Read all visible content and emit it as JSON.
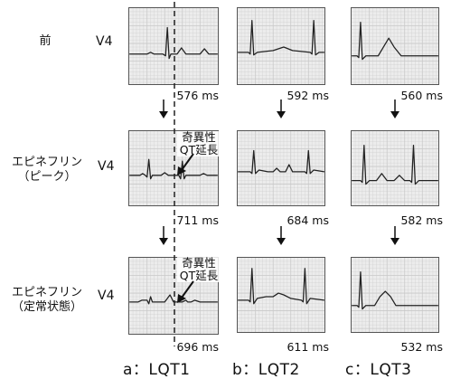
{
  "rows": [
    {
      "label_lines": [
        "前"
      ],
      "lead": "V4"
    },
    {
      "label_lines": [
        "エピネフリン",
        "（ピーク）"
      ],
      "lead": "V4"
    },
    {
      "label_lines": [
        "エピネフリン",
        "（定常状態）"
      ],
      "lead": "V4"
    }
  ],
  "intervals": [
    [
      "576 ms",
      "592 ms",
      "560 ms"
    ],
    [
      "711 ms",
      "684 ms",
      "582 ms"
    ],
    [
      "696 ms",
      "611 ms",
      "532 ms"
    ]
  ],
  "annotation_lines": [
    "奇異性",
    "QT延長"
  ],
  "columns": [
    {
      "caption": "a：LQT1"
    },
    {
      "caption": "b：LQT2"
    },
    {
      "caption": "c：LQT3"
    }
  ],
  "colors": {
    "grid_bg": "#ececec",
    "grid_line": "#c9c9c9",
    "trace": "#222222"
  }
}
